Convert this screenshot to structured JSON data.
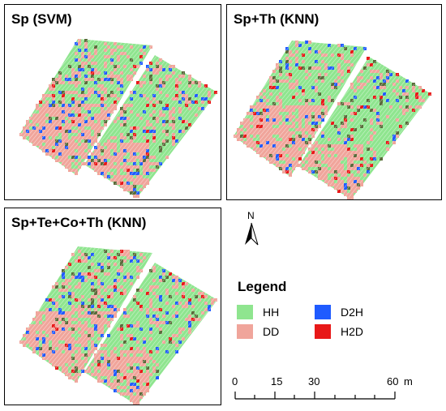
{
  "panels": [
    {
      "title": "Sp (SVM)"
    },
    {
      "title": "Sp+Th (KNN)"
    },
    {
      "title": "Sp+Te+Co+Th (KNN)"
    }
  ],
  "north_label": "N",
  "legend": {
    "title": "Legend",
    "items": [
      {
        "label": "HH",
        "color": "#8fe58f"
      },
      {
        "label": "D2H",
        "color": "#1f5bff"
      },
      {
        "label": "DD",
        "color": "#f0a59b"
      },
      {
        "label": "H2D",
        "color": "#e81818"
      }
    ]
  },
  "scale": {
    "ticks": [
      "0",
      "15",
      "30",
      "60"
    ],
    "unit": "m"
  }
}
